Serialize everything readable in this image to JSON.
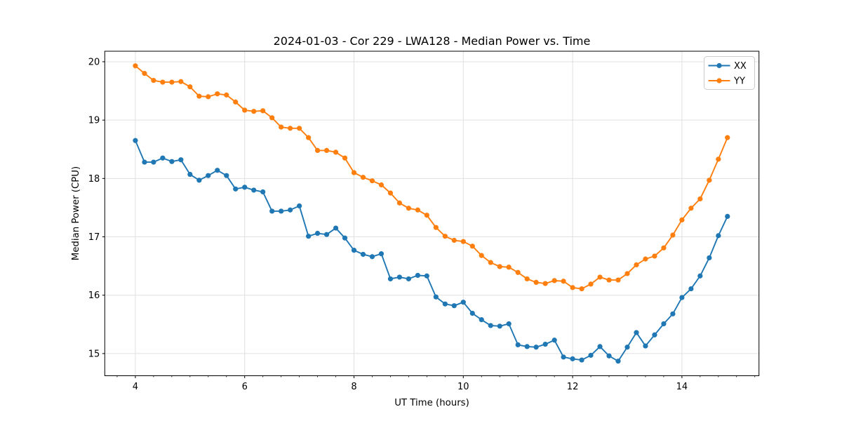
{
  "figure": {
    "background": "#ffffff"
  },
  "chart_data": {
    "type": "line",
    "title": "2024-01-03 - Cor 229 - LWA128 - Median Power vs. Time",
    "xlabel": "UT Time (hours)",
    "ylabel": "Median Power (CPU)",
    "xlim": [
      3.44,
      15.41
    ],
    "ylim": [
      14.62,
      20.18
    ],
    "xticks": [
      4,
      6,
      8,
      10,
      12,
      14
    ],
    "yticks": [
      15,
      16,
      17,
      18,
      19,
      20
    ],
    "x_minor_tick_step": 0.3333,
    "grid": true,
    "grid_color": "#e0e0e0",
    "axis_color": "#000000",
    "legend_position": "upper right",
    "marker": "circle",
    "x": [
      4.0,
      4.167,
      4.333,
      4.5,
      4.667,
      4.833,
      5.0,
      5.167,
      5.333,
      5.5,
      5.667,
      5.833,
      6.0,
      6.167,
      6.333,
      6.5,
      6.667,
      6.833,
      7.0,
      7.167,
      7.333,
      7.5,
      7.667,
      7.833,
      8.0,
      8.167,
      8.333,
      8.5,
      8.667,
      8.833,
      9.0,
      9.167,
      9.333,
      9.5,
      9.667,
      9.833,
      10.0,
      10.167,
      10.333,
      10.5,
      10.667,
      10.833,
      11.0,
      11.167,
      11.333,
      11.5,
      11.667,
      11.833,
      12.0,
      12.167,
      12.333,
      12.5,
      12.667,
      12.833,
      13.0,
      13.167,
      13.333,
      13.5,
      13.667,
      13.833,
      14.0,
      14.167,
      14.333,
      14.5,
      14.667,
      14.833
    ],
    "series": [
      {
        "name": "XX",
        "color": "#1f77b4",
        "values": [
          18.65,
          18.28,
          18.28,
          18.35,
          18.29,
          18.32,
          18.07,
          17.97,
          18.05,
          18.14,
          18.05,
          17.82,
          17.85,
          17.8,
          17.77,
          17.44,
          17.44,
          17.46,
          17.53,
          17.01,
          17.06,
          17.04,
          17.15,
          16.98,
          16.77,
          16.7,
          16.66,
          16.71,
          16.28,
          16.31,
          16.28,
          16.34,
          16.33,
          15.97,
          15.85,
          15.82,
          15.88,
          15.69,
          15.58,
          15.48,
          15.47,
          15.51,
          15.15,
          15.12,
          15.11,
          15.16,
          15.23,
          14.94,
          14.91,
          14.89,
          14.97,
          15.12,
          14.96,
          14.87,
          15.11,
          15.36,
          15.13,
          15.32,
          15.51,
          15.68,
          15.96,
          16.11,
          16.33,
          16.64,
          17.02,
          17.35
        ]
      },
      {
        "name": "YY",
        "color": "#ff7f0e",
        "values": [
          19.93,
          19.8,
          19.68,
          19.65,
          19.65,
          19.66,
          19.57,
          19.41,
          19.4,
          19.45,
          19.43,
          19.31,
          19.17,
          19.15,
          19.16,
          19.04,
          18.88,
          18.86,
          18.86,
          18.7,
          18.48,
          18.48,
          18.45,
          18.35,
          18.1,
          18.02,
          17.96,
          17.89,
          17.75,
          17.58,
          17.49,
          17.46,
          17.37,
          17.16,
          17.01,
          16.94,
          16.92,
          16.84,
          16.68,
          16.56,
          16.49,
          16.48,
          16.39,
          16.28,
          16.22,
          16.2,
          16.25,
          16.24,
          16.13,
          16.11,
          16.19,
          16.31,
          16.26,
          16.26,
          16.37,
          16.52,
          16.62,
          16.67,
          16.81,
          17.03,
          17.29,
          17.49,
          17.65,
          17.97,
          18.33,
          18.7
        ]
      }
    ]
  }
}
